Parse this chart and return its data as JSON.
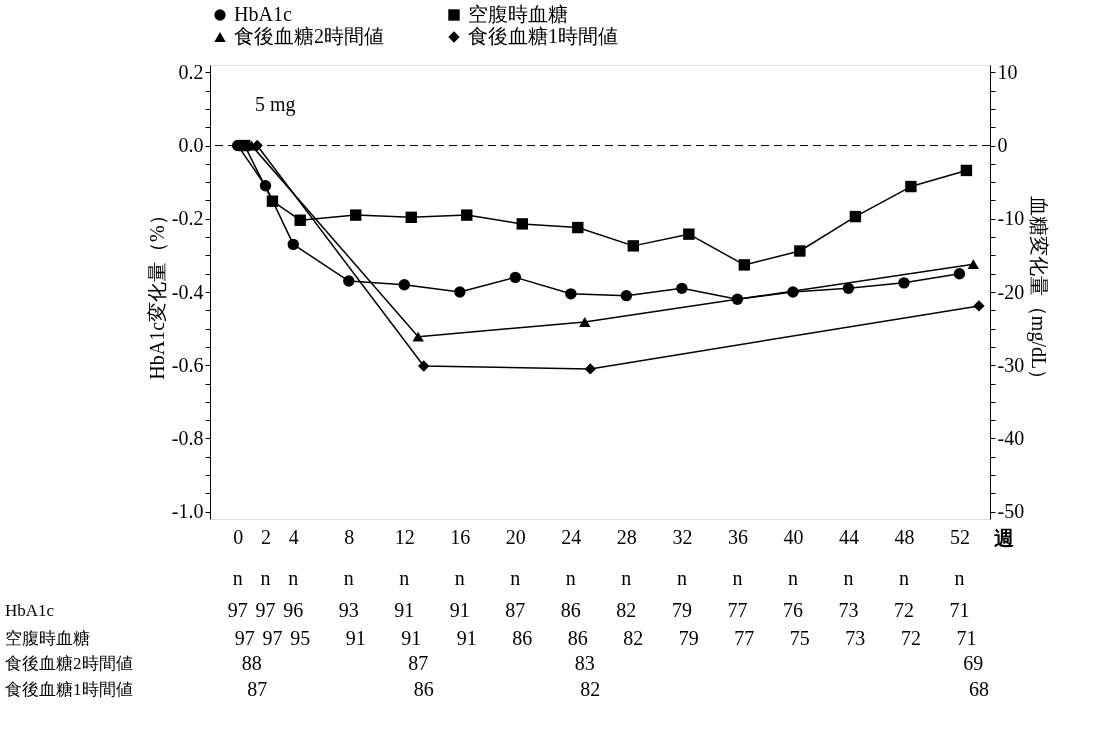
{
  "chart_data": {
    "type": "line",
    "xlabel": "週",
    "ylabel": "HbA1c変化量（%）",
    "y2label": "血糖変化量（mg/dL）",
    "xlim": [
      -2,
      54.2
    ],
    "xticks": [
      0,
      2,
      4,
      8,
      12,
      16,
      20,
      24,
      28,
      32,
      36,
      40,
      44,
      48,
      52
    ],
    "ylim": [
      -1.02,
      0.22
    ],
    "yticks": [
      {
        "value": 0.2,
        "label": "0.2"
      },
      {
        "value": 0.15,
        "label": null
      },
      {
        "value": 0.1,
        "label": null
      },
      {
        "value": 0.05,
        "label": null
      },
      {
        "value": 0,
        "label": "0.0"
      },
      {
        "value": -0.05,
        "label": null
      },
      {
        "value": -0.1,
        "label": null
      },
      {
        "value": -0.15,
        "label": null
      },
      {
        "value": -0.2,
        "label": "-0.2"
      },
      {
        "value": -0.25,
        "label": null
      },
      {
        "value": -0.3,
        "label": null
      },
      {
        "value": -0.35,
        "label": null
      },
      {
        "value": -0.4,
        "label": "-0.4"
      },
      {
        "value": -0.45,
        "label": null
      },
      {
        "value": -0.5,
        "label": null
      },
      {
        "value": -0.55,
        "label": null
      },
      {
        "value": -0.6,
        "label": "-0.6"
      },
      {
        "value": -0.65,
        "label": null
      },
      {
        "value": -0.7,
        "label": null
      },
      {
        "value": -0.75,
        "label": null
      },
      {
        "value": -0.8,
        "label": "-0.8"
      },
      {
        "value": -0.85,
        "label": null
      },
      {
        "value": -0.9,
        "label": null
      },
      {
        "value": -0.95,
        "label": null
      },
      {
        "value": -1.0,
        "label": "-1.0"
      }
    ],
    "y2lim": [
      -51,
      11
    ],
    "y2ticks": [
      10,
      {
        "value": 7.5,
        "label": null
      },
      {
        "value": 5,
        "label": null
      },
      {
        "value": 2.5,
        "label": null
      },
      0,
      {
        "value": -2.5,
        "label": null
      },
      {
        "value": -5,
        "label": null
      },
      {
        "value": -7.5,
        "label": null
      },
      -10,
      {
        "value": -12.5,
        "label": null
      },
      {
        "value": -15,
        "label": null
      },
      {
        "value": -17.5,
        "label": null
      },
      -20,
      {
        "value": -22.5,
        "label": null
      },
      {
        "value": -25,
        "label": null
      },
      {
        "value": -27.5,
        "label": null
      },
      -30,
      {
        "value": -32.5,
        "label": null
      },
      {
        "value": -35,
        "label": null
      },
      {
        "value": -37.5,
        "label": null
      },
      -40,
      {
        "value": -42.5,
        "label": null
      },
      {
        "value": -45,
        "label": null
      },
      {
        "value": -47.5,
        "label": null
      },
      -50
    ],
    "series": [
      {
        "name": "HbA1c",
        "color": "#000000",
        "marker": "circle",
        "x": [
          0,
          2,
          4,
          8,
          12,
          16,
          20,
          24,
          28,
          32,
          36,
          40,
          44,
          48,
          52
        ],
        "values": [
          0,
          -0.11,
          -0.27,
          -0.37,
          -0.38,
          -0.4,
          -0.36,
          -0.405,
          -0.41,
          -0.39,
          -0.42,
          -0.4,
          -0.39,
          -0.375,
          -0.35
        ]
      },
      {
        "name": "空腹時血糖",
        "color": "#000000",
        "marker": "square",
        "axis": "y2",
        "x": [
          0.5,
          2.5,
          4.5,
          8.5,
          12.5,
          16.5,
          20.5,
          24.5,
          28.5,
          32.5,
          36.5,
          40.5,
          44.5,
          48.5,
          52.5
        ],
        "values": [
          0,
          -7.6,
          -10.2,
          -9.5,
          -9.8,
          -9.5,
          -10.7,
          -11.2,
          -13.7,
          -12.1,
          -16.3,
          -14.4,
          -9.7,
          -5.6,
          -3.4
        ]
      },
      {
        "name": "食後血糖2時間値",
        "color": "#000000",
        "marker": "triangle",
        "axis": "y2",
        "x": [
          1,
          13,
          25,
          53
        ],
        "values": [
          0,
          -26.1,
          -24.1,
          -16.2
        ]
      },
      {
        "name": "食後血糖1時間値",
        "color": "#000000",
        "marker": "diamond",
        "axis": "y2",
        "x": [
          1.4,
          13.4,
          25.4,
          53.4
        ],
        "values": [
          0,
          -30.1,
          -30.5,
          -21.9
        ]
      }
    ],
    "ref_lines": [
      {
        "axis": "y",
        "value": 0,
        "line_style": "dashed",
        "color": "#000000"
      }
    ],
    "annotations": [
      "5 mg",
      "n n n n n n n n n n n n n n n",
      "97 97 96 93 91 91 87 86 82 79 77 76 73 72 71",
      "97 97 95 91 91 91 86 86 82 79 77 75 73 72 71",
      "88 87 83 69",
      "87 86 82 68"
    ],
    "legend": "top",
    "grid": false,
    "line_style": "solid"
  }
}
